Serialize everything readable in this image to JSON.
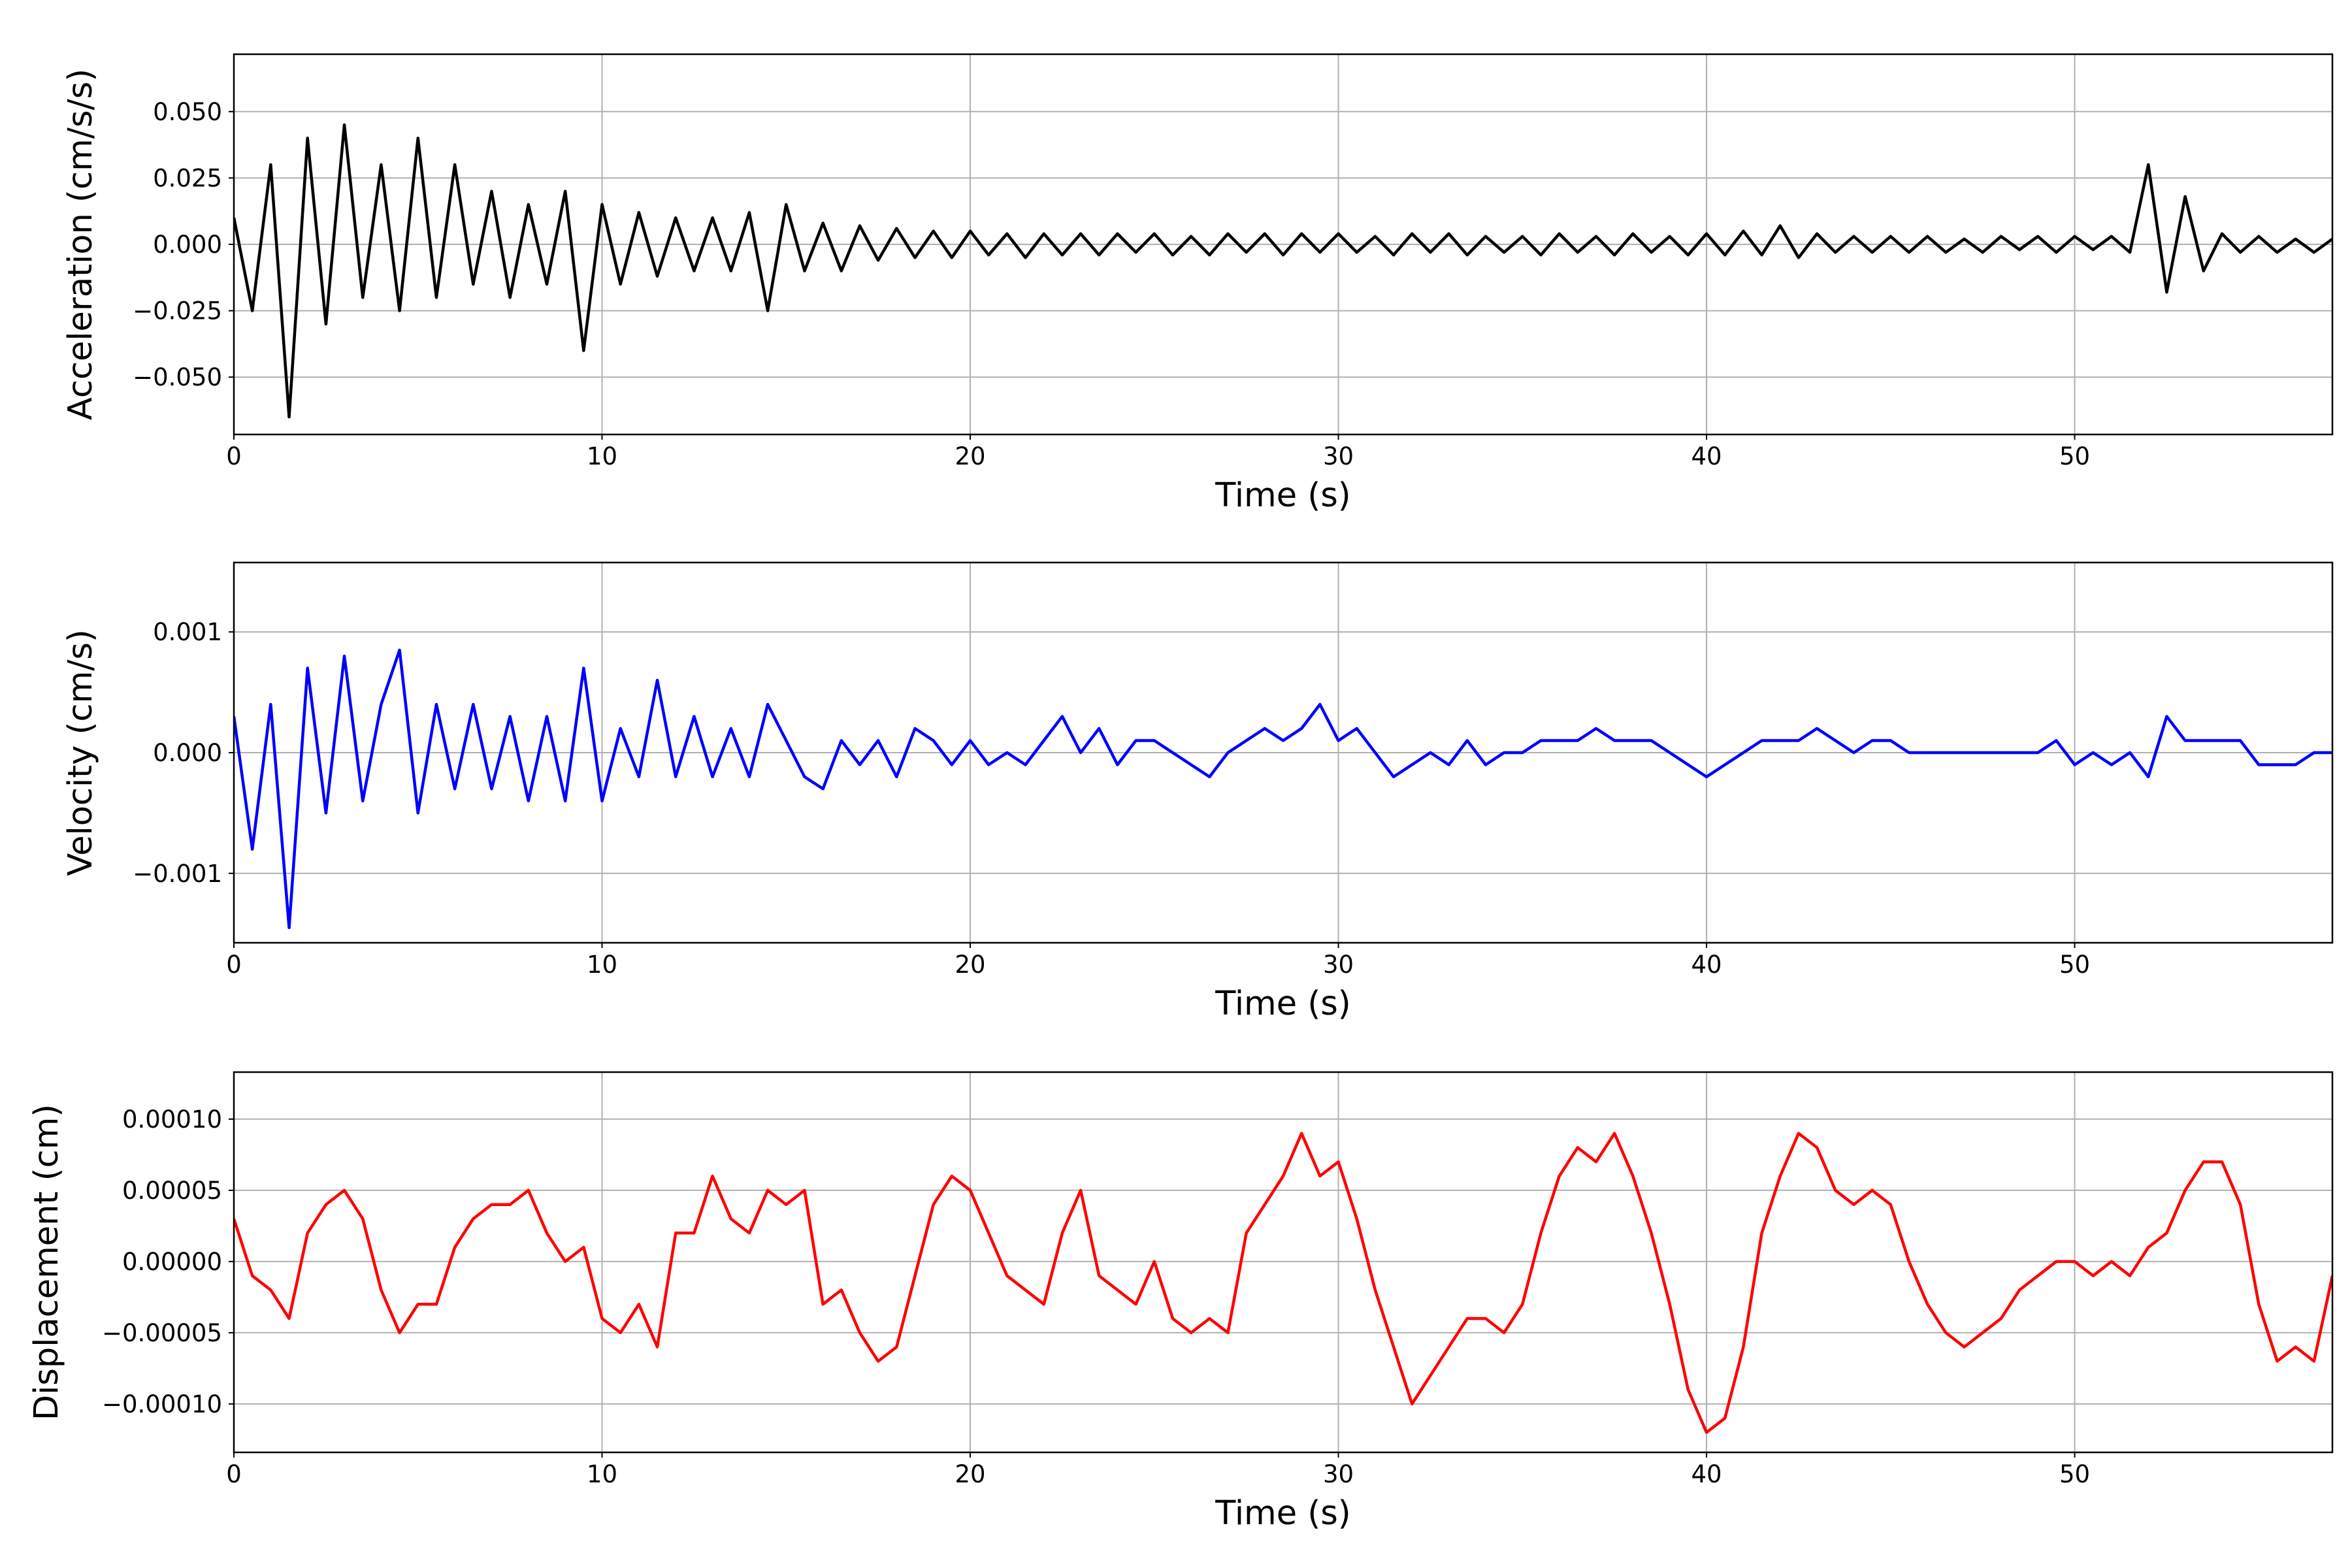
{
  "chart_data": [
    {
      "type": "line",
      "xlabel": "Time (s)",
      "ylabel": "Acceleration (cm/s/s)",
      "xlim": [
        0,
        57
      ],
      "xticks": [
        0,
        10,
        20,
        30,
        40,
        50
      ],
      "ylim": [
        -0.0716,
        0.0716
      ],
      "yticks": [
        {
          "value": -0.05,
          "label": "−0.050"
        },
        {
          "value": -0.025,
          "label": "−0.025"
        },
        {
          "value": 0,
          "label": "0.000"
        },
        {
          "value": 0.025,
          "label": "0.025"
        },
        {
          "value": 0.05,
          "label": "0.050"
        }
      ],
      "grid": true,
      "x": [
        0,
        0.5,
        1,
        1.5,
        2,
        2.5,
        3,
        3.5,
        4,
        4.5,
        5,
        5.5,
        6,
        6.5,
        7,
        7.5,
        8,
        8.5,
        9,
        9.5,
        10,
        10.5,
        11,
        11.5,
        12,
        12.5,
        13,
        13.5,
        14,
        14.5,
        15,
        15.5,
        16,
        16.5,
        17,
        17.5,
        18,
        18.5,
        19,
        19.5,
        20,
        20.5,
        21,
        21.5,
        22,
        22.5,
        23,
        23.5,
        24,
        24.5,
        25,
        25.5,
        26,
        26.5,
        27,
        27.5,
        28,
        28.5,
        29,
        29.5,
        30,
        30.5,
        31,
        31.5,
        32,
        32.5,
        33,
        33.5,
        34,
        34.5,
        35,
        35.5,
        36,
        36.5,
        37,
        37.5,
        38,
        38.5,
        39,
        39.5,
        40,
        40.5,
        41,
        41.5,
        42,
        42.5,
        43,
        43.5,
        44,
        44.5,
        45,
        45.5,
        46,
        46.5,
        47,
        47.5,
        48,
        48.5,
        49,
        49.5,
        50,
        50.5,
        51,
        51.5,
        52,
        52.5,
        53,
        53.5,
        54,
        54.5,
        55,
        55.5,
        56,
        56.5,
        57
      ],
      "series": [
        {
          "color": "#000000",
          "values": [
            0.01,
            -0.025,
            0.03,
            -0.065,
            0.04,
            -0.03,
            0.045,
            -0.02,
            0.03,
            -0.025,
            0.04,
            -0.02,
            0.03,
            -0.015,
            0.02,
            -0.02,
            0.015,
            -0.015,
            0.02,
            -0.04,
            0.015,
            -0.015,
            0.012,
            -0.012,
            0.01,
            -0.01,
            0.01,
            -0.01,
            0.012,
            -0.025,
            0.015,
            -0.01,
            0.008,
            -0.01,
            0.007,
            -0.006,
            0.006,
            -0.005,
            0.005,
            -0.005,
            0.005,
            -0.004,
            0.004,
            -0.005,
            0.004,
            -0.004,
            0.004,
            -0.004,
            0.004,
            -0.003,
            0.004,
            -0.004,
            0.003,
            -0.004,
            0.004,
            -0.003,
            0.004,
            -0.004,
            0.004,
            -0.003,
            0.004,
            -0.003,
            0.003,
            -0.004,
            0.004,
            -0.003,
            0.004,
            -0.004,
            0.003,
            -0.003,
            0.003,
            -0.004,
            0.004,
            -0.003,
            0.003,
            -0.004,
            0.004,
            -0.003,
            0.003,
            -0.004,
            0.004,
            -0.004,
            0.005,
            -0.004,
            0.007,
            -0.005,
            0.004,
            -0.003,
            0.003,
            -0.003,
            0.003,
            -0.003,
            0.003,
            -0.003,
            0.002,
            -0.003,
            0.003,
            -0.002,
            0.003,
            -0.003,
            0.003,
            -0.002,
            0.003,
            -0.003,
            0.03,
            -0.018,
            0.018,
            -0.01,
            0.004,
            -0.003,
            0.003,
            -0.003,
            0.002,
            -0.003,
            0.002
          ]
        }
      ]
    },
    {
      "type": "line",
      "xlabel": "Time (s)",
      "ylabel": "Velocity (cm/s)",
      "xlim": [
        0,
        57
      ],
      "xticks": [
        0,
        10,
        20,
        30,
        40,
        50
      ],
      "ylim": [
        -0.001575,
        0.001575
      ],
      "yticks": [
        {
          "value": -0.001,
          "label": "−0.001"
        },
        {
          "value": 0,
          "label": "0.000"
        },
        {
          "value": 0.001,
          "label": "0.001"
        }
      ],
      "grid": true,
      "x": [
        0,
        0.5,
        1,
        1.5,
        2,
        2.5,
        3,
        3.5,
        4,
        4.5,
        5,
        5.5,
        6,
        6.5,
        7,
        7.5,
        8,
        8.5,
        9,
        9.5,
        10,
        10.5,
        11,
        11.5,
        12,
        12.5,
        13,
        13.5,
        14,
        14.5,
        15,
        15.5,
        16,
        16.5,
        17,
        17.5,
        18,
        18.5,
        19,
        19.5,
        20,
        20.5,
        21,
        21.5,
        22,
        22.5,
        23,
        23.5,
        24,
        24.5,
        25,
        25.5,
        26,
        26.5,
        27,
        27.5,
        28,
        28.5,
        29,
        29.5,
        30,
        30.5,
        31,
        31.5,
        32,
        32.5,
        33,
        33.5,
        34,
        34.5,
        35,
        35.5,
        36,
        36.5,
        37,
        37.5,
        38,
        38.5,
        39,
        39.5,
        40,
        40.5,
        41,
        41.5,
        42,
        42.5,
        43,
        43.5,
        44,
        44.5,
        45,
        45.5,
        46,
        46.5,
        47,
        47.5,
        48,
        48.5,
        49,
        49.5,
        50,
        50.5,
        51,
        51.5,
        52,
        52.5,
        53,
        53.5,
        54,
        54.5,
        55,
        55.5,
        56,
        56.5,
        57
      ],
      "series": [
        {
          "color": "#0000ff",
          "values": [
            0.0003,
            -0.0008,
            0.0004,
            -0.00145,
            0.0007,
            -0.0005,
            0.0008,
            -0.0004,
            0.0004,
            0.00085,
            -0.0005,
            0.0004,
            -0.0003,
            0.0004,
            -0.0003,
            0.0003,
            -0.0004,
            0.0003,
            -0.0004,
            0.0007,
            -0.0004,
            0.0002,
            -0.0002,
            0.0006,
            -0.0002,
            0.0003,
            -0.0002,
            0.0002,
            -0.0002,
            0.0004,
            0.0001,
            -0.0002,
            -0.0003,
            0.0001,
            -0.0001,
            0.0001,
            -0.0002,
            0.0002,
            0.0001,
            -0.0001,
            0.0001,
            -0.0001,
            0,
            -0.0001,
            0.0001,
            0.0003,
            0,
            0.0002,
            -0.0001,
            0.0001,
            0.0001,
            0,
            -0.0001,
            -0.0002,
            0,
            0.0001,
            0.0002,
            0.0001,
            0.0002,
            0.0004,
            0.0001,
            0.0002,
            0,
            -0.0002,
            -0.0001,
            0,
            -0.0001,
            0.0001,
            -0.0001,
            0,
            0,
            0.0001,
            0.0001,
            0.0001,
            0.0002,
            0.0001,
            0.0001,
            0.0001,
            0,
            -0.0001,
            -0.0002,
            -0.0001,
            0,
            0.0001,
            0.0001,
            0.0001,
            0.0002,
            0.0001,
            0,
            0.0001,
            0.0001,
            0,
            0,
            0,
            0,
            0,
            0,
            0,
            0,
            0.0001,
            -0.0001,
            0,
            -0.0001,
            0,
            -0.0002,
            0.0003,
            0.0001,
            0.0001,
            0.0001,
            0.0001,
            -0.0001,
            -0.0001,
            -0.0001,
            0,
            0
          ]
        }
      ]
    },
    {
      "type": "line",
      "xlabel": "Time (s)",
      "ylabel": "Displacement (cm)",
      "xlim": [
        0,
        57
      ],
      "xticks": [
        0,
        10,
        20,
        30,
        40,
        50
      ],
      "ylim": [
        -0.000134,
        0.000133
      ],
      "yticks": [
        {
          "value": -0.0001,
          "label": "−0.00010"
        },
        {
          "value": -5e-05,
          "label": "−0.00005"
        },
        {
          "value": 0,
          "label": "0.00000"
        },
        {
          "value": 5e-05,
          "label": "0.00005"
        },
        {
          "value": 0.0001,
          "label": "0.00010"
        }
      ],
      "grid": true,
      "x": [
        0,
        0.5,
        1,
        1.5,
        2,
        2.5,
        3,
        3.5,
        4,
        4.5,
        5,
        5.5,
        6,
        6.5,
        7,
        7.5,
        8,
        8.5,
        9,
        9.5,
        10,
        10.5,
        11,
        11.5,
        12,
        12.5,
        13,
        13.5,
        14,
        14.5,
        15,
        15.5,
        16,
        16.5,
        17,
        17.5,
        18,
        18.5,
        19,
        19.5,
        20,
        20.5,
        21,
        21.5,
        22,
        22.5,
        23,
        23.5,
        24,
        24.5,
        25,
        25.5,
        26,
        26.5,
        27,
        27.5,
        28,
        28.5,
        29,
        29.5,
        30,
        30.5,
        31,
        31.5,
        32,
        32.5,
        33,
        33.5,
        34,
        34.5,
        35,
        35.5,
        36,
        36.5,
        37,
        37.5,
        38,
        38.5,
        39,
        39.5,
        40,
        40.5,
        41,
        41.5,
        42,
        42.5,
        43,
        43.5,
        44,
        44.5,
        45,
        45.5,
        46,
        46.5,
        47,
        47.5,
        48,
        48.5,
        49,
        49.5,
        50,
        50.5,
        51,
        51.5,
        52,
        52.5,
        53,
        53.5,
        54,
        54.5,
        55,
        55.5,
        56,
        56.5,
        57
      ],
      "series": [
        {
          "color": "#ff0000",
          "values": [
            3e-05,
            -1e-05,
            -2e-05,
            -4e-05,
            2e-05,
            4e-05,
            5e-05,
            3e-05,
            -2e-05,
            -5e-05,
            -3e-05,
            -3e-05,
            1e-05,
            3e-05,
            4e-05,
            4e-05,
            5e-05,
            2e-05,
            0,
            1e-05,
            -4e-05,
            -5e-05,
            -3e-05,
            -6e-05,
            2e-05,
            2e-05,
            6e-05,
            3e-05,
            2e-05,
            5e-05,
            4e-05,
            5e-05,
            -3e-05,
            -2e-05,
            -5e-05,
            -7e-05,
            -6e-05,
            -1e-05,
            4e-05,
            6e-05,
            5e-05,
            2e-05,
            -1e-05,
            -2e-05,
            -3e-05,
            2e-05,
            5e-05,
            -1e-05,
            -2e-05,
            -3e-05,
            0,
            -4e-05,
            -5e-05,
            -4e-05,
            -5e-05,
            2e-05,
            4e-05,
            6e-05,
            9e-05,
            6e-05,
            7e-05,
            3e-05,
            -2e-05,
            -6e-05,
            -0.0001,
            -8e-05,
            -6e-05,
            -4e-05,
            -4e-05,
            -5e-05,
            -3e-05,
            2e-05,
            6e-05,
            8e-05,
            7e-05,
            9e-05,
            6e-05,
            2e-05,
            -3e-05,
            -9e-05,
            -0.00012,
            -0.00011,
            -6e-05,
            2e-05,
            6e-05,
            9e-05,
            8e-05,
            5e-05,
            4e-05,
            5e-05,
            4e-05,
            0,
            -3e-05,
            -5e-05,
            -6e-05,
            -5e-05,
            -4e-05,
            -2e-05,
            -1e-05,
            0,
            0,
            -1e-05,
            0,
            -1e-05,
            1e-05,
            2e-05,
            5e-05,
            7e-05,
            7e-05,
            4e-05,
            -3e-05,
            -7e-05,
            -6e-05,
            -7e-05,
            -1e-05
          ]
        }
      ]
    }
  ]
}
